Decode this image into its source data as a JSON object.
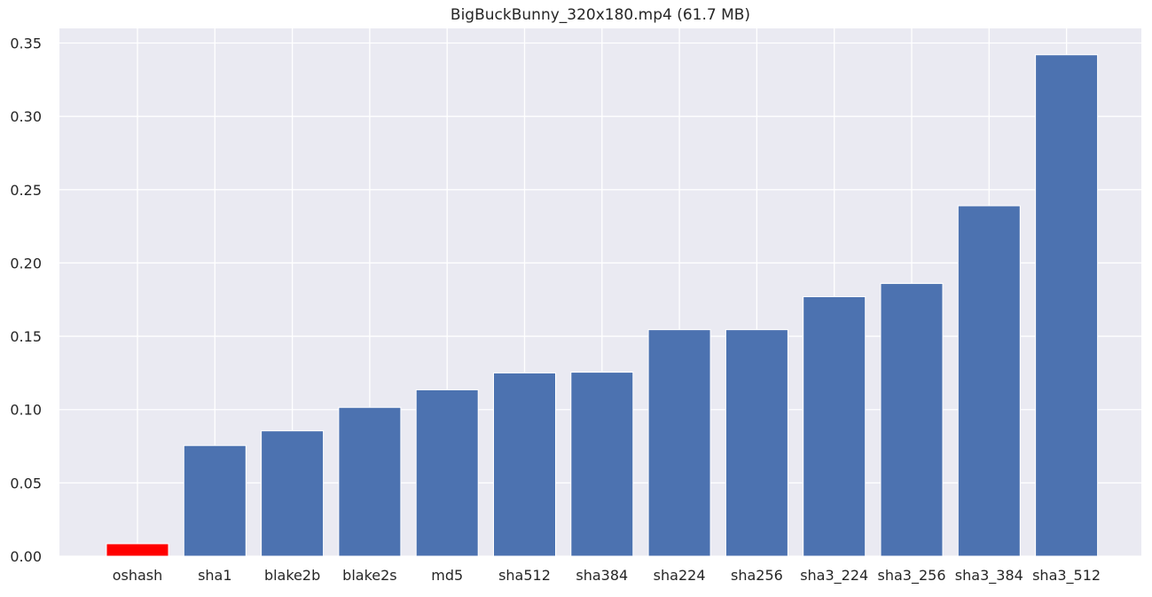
{
  "chart_data": {
    "type": "bar",
    "title": "BigBuckBunny_320x180.mp4 (61.7 MB)",
    "xlabel": "",
    "ylabel": "",
    "categories": [
      "oshash",
      "sha1",
      "blake2b",
      "blake2s",
      "md5",
      "sha512",
      "sha384",
      "sha224",
      "sha256",
      "sha3_224",
      "sha3_256",
      "sha3_384",
      "sha3_512"
    ],
    "values": [
      0.0085,
      0.0755,
      0.0855,
      0.1015,
      0.1135,
      0.125,
      0.1255,
      0.1545,
      0.1545,
      0.177,
      0.186,
      0.239,
      0.342
    ],
    "bar_colors": [
      "#ff0000",
      "#4c72b0",
      "#4c72b0",
      "#4c72b0",
      "#4c72b0",
      "#4c72b0",
      "#4c72b0",
      "#4c72b0",
      "#4c72b0",
      "#4c72b0",
      "#4c72b0",
      "#4c72b0",
      "#4c72b0"
    ],
    "ylim": [
      0,
      0.36
    ],
    "yticks": [
      0.0,
      0.05,
      0.1,
      0.15,
      0.2,
      0.25,
      0.3,
      0.35
    ],
    "ytick_labels": [
      "0.00",
      "0.05",
      "0.10",
      "0.15",
      "0.20",
      "0.25",
      "0.30",
      "0.35"
    ],
    "grid": true,
    "background": "#eaeaf2",
    "grid_color": "#ffffff"
  }
}
